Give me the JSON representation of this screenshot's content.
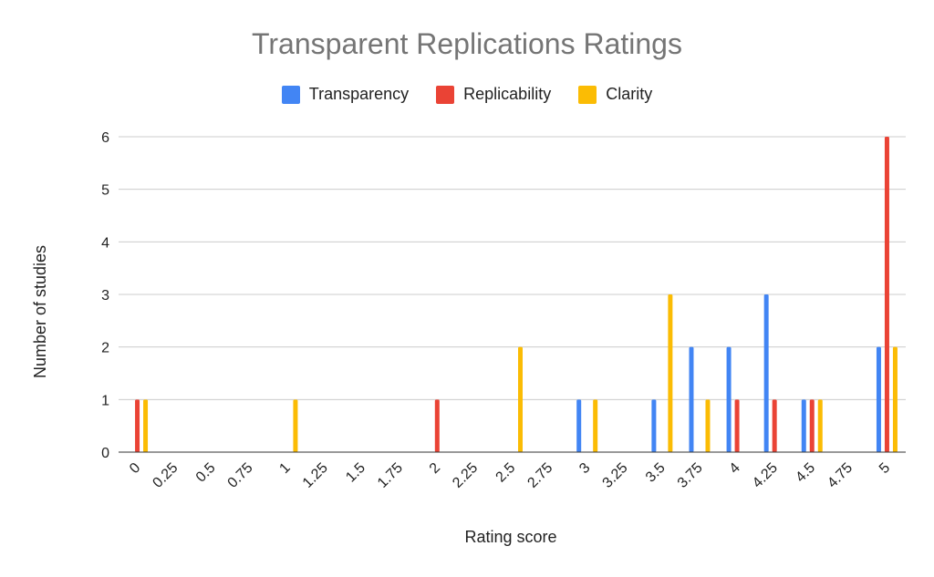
{
  "chart_data": {
    "type": "bar",
    "title": "Transparent Replications Ratings",
    "xlabel": "Rating score",
    "ylabel": "Number of studies",
    "categories": [
      "0",
      "0.25",
      "0.5",
      "0.75",
      "1",
      "1.25",
      "1.5",
      "1.75",
      "2",
      "2.25",
      "2.5",
      "2.75",
      "3",
      "3.25",
      "3.5",
      "3.75",
      "4",
      "4.25",
      "4.5",
      "4.75",
      "5"
    ],
    "ylim": [
      0,
      6
    ],
    "yticks": [
      "0",
      "1",
      "2",
      "3",
      "4",
      "5",
      "6"
    ],
    "grid": true,
    "legend_position": "top",
    "series": [
      {
        "name": "Transparency",
        "color": "#4285F4",
        "values": [
          0,
          0,
          0,
          0,
          0,
          0,
          0,
          0,
          0,
          0,
          0,
          0,
          1,
          0,
          1,
          2,
          2,
          3,
          1,
          0,
          2
        ]
      },
      {
        "name": "Replicability",
        "color": "#EA4335",
        "values": [
          1,
          0,
          0,
          0,
          0,
          0,
          0,
          0,
          1,
          0,
          0,
          0,
          0,
          0,
          0,
          0,
          1,
          1,
          1,
          0,
          6
        ]
      },
      {
        "name": "Clarity",
        "color": "#FBBC04",
        "values": [
          1,
          0,
          0,
          0,
          1,
          0,
          0,
          0,
          0,
          0,
          2,
          0,
          1,
          0,
          3,
          1,
          0,
          0,
          1,
          0,
          2
        ]
      }
    ]
  }
}
